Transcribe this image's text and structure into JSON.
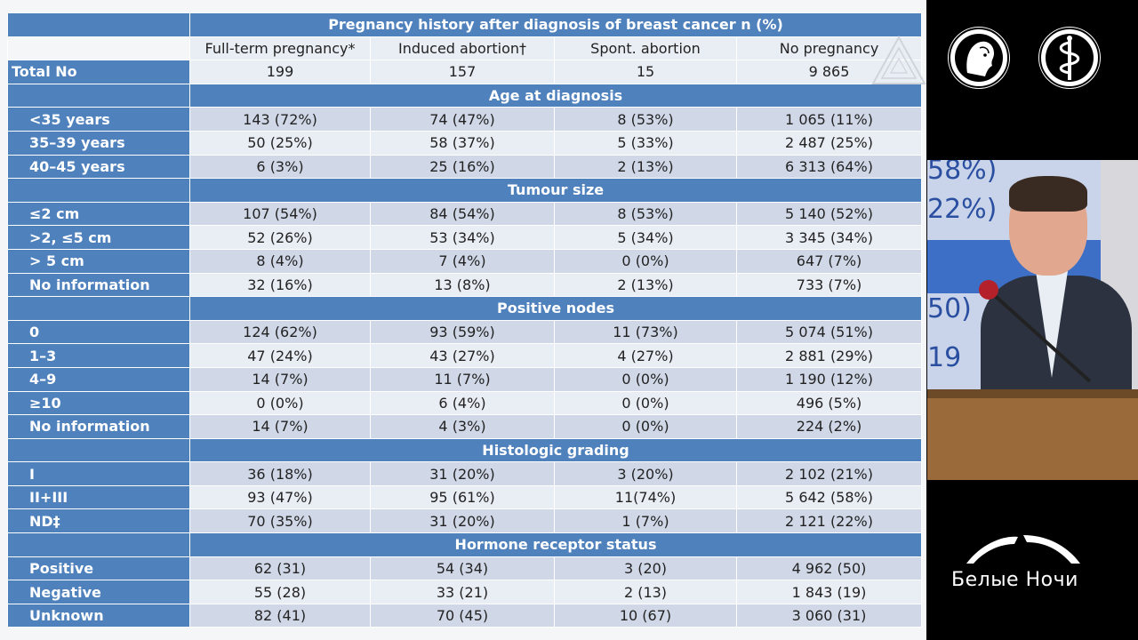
{
  "table": {
    "title": "Pregnancy history after diagnosis of breast cancer n (%)",
    "columns": [
      "Full-term pregnancy*",
      "Induced abortion†",
      "Spont. abortion",
      "No pregnancy"
    ],
    "total": {
      "label": "Total No",
      "values": [
        "199",
        "157",
        "15",
        "9 865"
      ]
    },
    "sections": [
      {
        "name": "Age at diagnosis",
        "rows": [
          {
            "label": "<35 years",
            "values": [
              "143 (72%)",
              "74 (47%)",
              "8 (53%)",
              "1 065 (11%)"
            ]
          },
          {
            "label": "35–39 years",
            "values": [
              "50 (25%)",
              "58 (37%)",
              "5 (33%)",
              "2 487 (25%)"
            ]
          },
          {
            "label": "40–45 years",
            "values": [
              "6 (3%)",
              "25 (16%)",
              "2 (13%)",
              "6 313 (64%)"
            ]
          }
        ]
      },
      {
        "name": "Tumour size",
        "rows": [
          {
            "label": "≤2 cm",
            "values": [
              "107 (54%)",
              "84 (54%)",
              "8 (53%)",
              "5 140 (52%)"
            ]
          },
          {
            "label": ">2, ≤5 cm",
            "values": [
              "52 (26%)",
              "53 (34%)",
              "5 (34%)",
              "3 345 (34%)"
            ]
          },
          {
            "label": "> 5 cm",
            "values": [
              "8 (4%)",
              "7 (4%)",
              "0 (0%)",
              "647 (7%)"
            ]
          },
          {
            "label": "No information",
            "values": [
              "32 (16%)",
              "13 (8%)",
              "2 (13%)",
              "733 (7%)"
            ]
          }
        ]
      },
      {
        "name": "Positive nodes",
        "rows": [
          {
            "label": "0",
            "values": [
              "124 (62%)",
              "93 (59%)",
              "11 (73%)",
              "5 074 (51%)"
            ]
          },
          {
            "label": "1–3",
            "values": [
              "47 (24%)",
              "43 (27%)",
              "4 (27%)",
              "2 881 (29%)"
            ]
          },
          {
            "label": "4–9",
            "values": [
              "14 (7%)",
              "11 (7%)",
              "0 (0%)",
              "1 190 (12%)"
            ]
          },
          {
            "label": "≥10",
            "values": [
              "0 (0%)",
              "6 (4%)",
              "0 (0%)",
              "496 (5%)"
            ]
          },
          {
            "label": "No information",
            "values": [
              "14 (7%)",
              "4 (3%)",
              "0 (0%)",
              "224 (2%)"
            ]
          }
        ]
      },
      {
        "name": "Histologic grading",
        "rows": [
          {
            "label": "I",
            "values": [
              "36 (18%)",
              "31 (20%)",
              "3 (20%)",
              "2 102 (21%)"
            ]
          },
          {
            "label": "II+III",
            "values": [
              "93 (47%)",
              "95 (61%)",
              "11(74%)",
              "5 642 (58%)"
            ]
          },
          {
            "label": "ND‡",
            "values": [
              "70 (35%)",
              "31 (20%)",
              "1 (7%)",
              "2 121 (22%)"
            ]
          }
        ]
      },
      {
        "name": "Hormone receptor status",
        "rows": [
          {
            "label": "Positive",
            "values": [
              "62 (31)",
              "54 (34)",
              "3 (20)",
              "4 962 (50)"
            ]
          },
          {
            "label": "Negative",
            "values": [
              "55 (28)",
              "33 (21)",
              "2 (13)",
              "1 843 (19)"
            ]
          },
          {
            "label": "Unknown",
            "values": [
              "82 (41)",
              "70 (45)",
              "10 (67)",
              "3 060 (31)"
            ]
          }
        ]
      }
    ]
  },
  "video": {
    "screen_fragments": [
      "58%)",
      "22%)",
      "50)",
      "19"
    ]
  },
  "branding": {
    "name": "Белые Ночи"
  },
  "icons": {
    "logo_left": "portrait-medallion-icon",
    "logo_right": "caduceus-icon",
    "brand": "white-nights-arc-icon",
    "watermark": "triangle-watermark-icon"
  },
  "colors": {
    "header_blue": "#4f81bd",
    "row_light": "#e9edf4",
    "row_mid": "#d0d8e8",
    "background": "#000000"
  }
}
